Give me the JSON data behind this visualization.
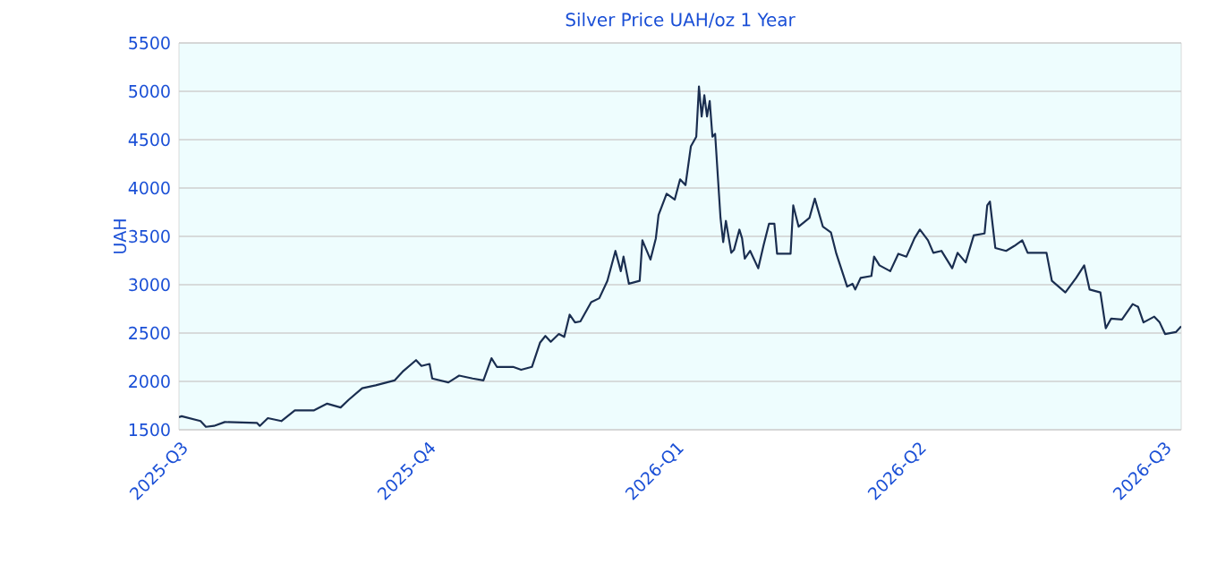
{
  "chart_data": {
    "type": "line",
    "title": "Silver Price UAH/oz 1 Year",
    "ylabel": "UAH",
    "grid": "y",
    "xlim": [
      "2025-07-01",
      "2026-07-08"
    ],
    "ylim": [
      1500,
      5500
    ],
    "xticks": [
      {
        "value": "2025-07-01",
        "label": "2025-Q3"
      },
      {
        "value": "2025-10-01",
        "label": "2025-Q4"
      },
      {
        "value": "2026-01-01",
        "label": "2026-Q1"
      },
      {
        "value": "2026-04-01",
        "label": "2026-Q2"
      },
      {
        "value": "2026-07-01",
        "label": "2026-Q3"
      }
    ],
    "yticks": [
      1500,
      2000,
      2500,
      3000,
      3500,
      4000,
      4500,
      5000,
      5500
    ],
    "series": [
      {
        "color": "#1a2e50",
        "x": [
          "2025-07-01",
          "2025-07-02",
          "2025-07-09",
          "2025-07-11",
          "2025-07-14",
          "2025-07-18",
          "2025-07-30",
          "2025-07-31",
          "2025-08-03",
          "2025-08-08",
          "2025-08-13",
          "2025-08-20",
          "2025-08-25",
          "2025-08-30",
          "2025-09-02",
          "2025-09-07",
          "2025-09-12",
          "2025-09-19",
          "2025-09-22",
          "2025-09-27",
          "2025-09-29",
          "2025-10-02",
          "2025-10-03",
          "2025-10-09",
          "2025-10-13",
          "2025-10-18",
          "2025-10-22",
          "2025-10-25",
          "2025-10-27",
          "2025-11-02",
          "2025-11-05",
          "2025-11-09",
          "2025-11-12",
          "2025-11-14",
          "2025-11-16",
          "2025-11-19",
          "2025-11-21",
          "2025-11-23",
          "2025-11-25",
          "2025-11-27",
          "2025-12-01",
          "2025-12-04",
          "2025-12-07",
          "2025-12-10",
          "2025-12-12",
          "2025-12-13",
          "2025-12-15",
          "2025-12-19",
          "2025-12-20",
          "2025-12-23",
          "2025-12-25",
          "2025-12-26",
          "2025-12-29",
          "2026-01-01",
          "2026-01-03",
          "2026-01-05",
          "2026-01-07",
          "2026-01-09",
          "2026-01-10",
          "2026-01-11",
          "2026-01-12",
          "2026-01-13",
          "2026-01-14",
          "2026-01-15",
          "2026-01-16",
          "2026-01-18",
          "2026-01-19",
          "2026-01-20",
          "2026-01-22",
          "2026-01-23",
          "2026-01-25",
          "2026-01-26",
          "2026-01-27",
          "2026-01-29",
          "2026-02-01",
          "2026-02-03",
          "2026-02-05",
          "2026-02-07",
          "2026-02-08",
          "2026-02-13",
          "2026-02-14",
          "2026-02-16",
          "2026-02-20",
          "2026-02-22",
          "2026-02-25",
          "2026-02-28",
          "2026-03-02",
          "2026-03-06",
          "2026-03-08",
          "2026-03-09",
          "2026-03-11",
          "2026-03-15",
          "2026-03-16",
          "2026-03-18",
          "2026-03-22",
          "2026-03-25",
          "2026-03-28",
          "2026-03-31",
          "2026-04-02",
          "2026-04-05",
          "2026-04-07",
          "2026-04-10",
          "2026-04-14",
          "2026-04-16",
          "2026-04-19",
          "2026-04-22",
          "2026-04-26",
          "2026-04-27",
          "2026-04-28",
          "2026-04-30",
          "2026-05-04",
          "2026-05-07",
          "2026-05-10",
          "2026-05-12",
          "2026-05-19",
          "2026-05-21",
          "2026-05-26",
          "2026-05-30",
          "2026-06-02",
          "2026-06-04",
          "2026-06-08",
          "2026-06-10",
          "2026-06-12",
          "2026-06-16",
          "2026-06-20",
          "2026-06-22",
          "2026-06-24",
          "2026-06-28",
          "2026-06-30",
          "2026-07-02",
          "2026-07-06",
          "2026-07-08"
        ],
        "values": [
          1630,
          1640,
          1590,
          1530,
          1540,
          1580,
          1570,
          1540,
          1620,
          1590,
          1700,
          1700,
          1770,
          1730,
          1810,
          1930,
          1960,
          2010,
          2100,
          2220,
          2160,
          2180,
          2030,
          1990,
          2060,
          2030,
          2010,
          2240,
          2150,
          2150,
          2120,
          2150,
          2400,
          2470,
          2410,
          2490,
          2460,
          2690,
          2610,
          2620,
          2820,
          2860,
          3040,
          3350,
          3140,
          3290,
          3010,
          3040,
          3460,
          3260,
          3480,
          3720,
          3940,
          3880,
          4090,
          4030,
          4430,
          4530,
          5050,
          4740,
          4960,
          4740,
          4900,
          4530,
          4560,
          3690,
          3440,
          3660,
          3330,
          3360,
          3570,
          3480,
          3270,
          3350,
          3170,
          3410,
          3630,
          3630,
          3320,
          3320,
          3820,
          3600,
          3690,
          3890,
          3600,
          3540,
          3320,
          2980,
          3010,
          2950,
          3070,
          3090,
          3290,
          3200,
          3140,
          3320,
          3290,
          3480,
          3570,
          3460,
          3330,
          3350,
          3170,
          3330,
          3230,
          3510,
          3530,
          3820,
          3860,
          3380,
          3350,
          3400,
          3460,
          3330,
          3330,
          3040,
          2920,
          3070,
          3200,
          2950,
          2920,
          2550,
          2650,
          2640,
          2800,
          2770,
          2610,
          2670,
          2610,
          2490,
          2510,
          2570
        ]
      }
    ]
  }
}
